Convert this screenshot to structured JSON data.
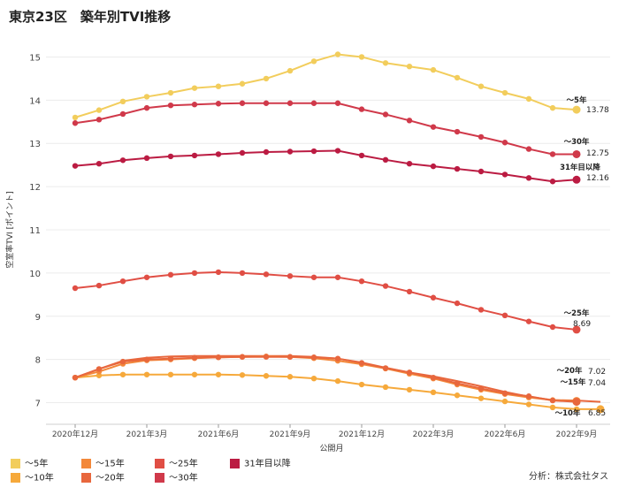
{
  "title": "東京23区　築年別TVI推移",
  "credit": "分析：株式会社タス",
  "chart_data": {
    "type": "line",
    "title": "東京23区　築年別TVI推移",
    "xlabel": "公開月",
    "ylabel": "空室率TVI [ポイント]",
    "ylim": [
      6.5,
      15.5
    ],
    "yticks": [
      7,
      8,
      9,
      10,
      11,
      12,
      13,
      14,
      15
    ],
    "grid": true,
    "x": [
      "2020-12",
      "2021-01",
      "2021-02",
      "2021-03",
      "2021-04",
      "2021-05",
      "2021-06",
      "2021-07",
      "2021-08",
      "2021-09",
      "2021-10",
      "2021-11",
      "2021-12",
      "2022-01",
      "2022-02",
      "2022-03",
      "2022-04",
      "2022-05",
      "2022-06",
      "2022-07",
      "2022-08",
      "2022-09",
      "2022-10"
    ],
    "xtick_labels": [
      {
        "index": 0,
        "label": "2020年12月"
      },
      {
        "index": 3,
        "label": "2021年3月"
      },
      {
        "index": 6,
        "label": "2021年6月"
      },
      {
        "index": 9,
        "label": "2021年9月"
      },
      {
        "index": 12,
        "label": "2021年12月"
      },
      {
        "index": 15,
        "label": "2022年3月"
      },
      {
        "index": 18,
        "label": "2022年6月"
      },
      {
        "index": 21,
        "label": "2022年9月"
      }
    ],
    "series": [
      {
        "name": "〜5年",
        "color": "#f2cd5c",
        "values": [
          13.6,
          13.77,
          13.97,
          14.08,
          14.17,
          14.28,
          14.32,
          14.38,
          14.5,
          14.68,
          14.9,
          15.06,
          15.0,
          14.86,
          14.78,
          14.7,
          14.52,
          14.32,
          14.17,
          14.03,
          13.82,
          13.78,
          null
        ],
        "label": "〜5年",
        "value_label": "13.78"
      },
      {
        "name": "〜10年",
        "color": "#f6a93b",
        "values": [
          7.58,
          7.63,
          7.65,
          7.65,
          7.65,
          7.65,
          7.65,
          7.64,
          7.62,
          7.6,
          7.56,
          7.5,
          7.42,
          7.36,
          7.3,
          7.24,
          7.17,
          7.1,
          7.03,
          6.96,
          6.89,
          6.85,
          6.85
        ],
        "label": "〜10年",
        "value_label": "6.85"
      },
      {
        "name": "〜15年",
        "color": "#f3883a",
        "values": [
          7.58,
          7.72,
          7.9,
          7.98,
          8.0,
          8.03,
          8.05,
          8.06,
          8.07,
          8.06,
          8.03,
          7.97,
          7.89,
          7.79,
          7.67,
          7.56,
          7.42,
          7.3,
          7.2,
          7.12,
          7.06,
          7.04,
          null
        ],
        "label": "〜15年",
        "value_label": "7.04"
      },
      {
        "name": "〜20年",
        "color": "#e8673d",
        "values": [
          7.58,
          7.78,
          7.95,
          8.0,
          8.02,
          8.04,
          8.05,
          8.06,
          8.06,
          8.06,
          8.05,
          8.02,
          7.92,
          7.8,
          7.7,
          7.58,
          7.45,
          7.33,
          7.22,
          7.15,
          7.05,
          7.02,
          null
        ],
        "label": "〜20年",
        "value_label": "7.02"
      },
      {
        "name": "〜25年",
        "color": "#e04e44",
        "values": [
          9.65,
          9.71,
          9.81,
          9.9,
          9.96,
          10.0,
          10.02,
          10.0,
          9.97,
          9.93,
          9.9,
          9.9,
          9.81,
          9.7,
          9.57,
          9.43,
          9.3,
          9.15,
          9.02,
          8.88,
          8.75,
          8.69,
          null
        ],
        "label": "〜25年",
        "value_label": "8.69"
      },
      {
        "name": "〜30年",
        "color": "#d0394a",
        "values": [
          13.47,
          13.55,
          13.68,
          13.82,
          13.88,
          13.9,
          13.92,
          13.93,
          13.93,
          13.93,
          13.93,
          13.93,
          13.79,
          13.67,
          13.53,
          13.38,
          13.27,
          13.15,
          13.02,
          12.87,
          12.75,
          12.75,
          null
        ],
        "label": "〜30年",
        "value_label": "12.75"
      },
      {
        "name": "31年目以降",
        "color": "#bb1b42",
        "values": [
          12.48,
          12.53,
          12.61,
          12.66,
          12.7,
          12.72,
          12.75,
          12.78,
          12.8,
          12.81,
          12.82,
          12.83,
          12.72,
          12.62,
          12.53,
          12.47,
          12.41,
          12.35,
          12.28,
          12.2,
          12.12,
          12.16,
          null
        ],
        "label": "31年目以降",
        "value_label": "12.16"
      }
    ],
    "extra_series": [
      {
        "name": "〜20年 extension",
        "color": "#e8673d",
        "values": [
          7.58,
          7.78,
          7.97,
          8.04,
          8.07,
          8.08,
          8.08,
          8.08,
          8.08,
          8.08,
          8.06,
          8.02,
          7.93,
          7.81,
          7.7,
          7.61,
          7.5,
          7.38,
          7.25,
          7.14,
          7.06,
          7.05,
          7.02
        ]
      }
    ],
    "legend": [
      {
        "label": "〜5年",
        "color": "#f2cd5c"
      },
      {
        "label": "〜10年",
        "color": "#f6a93b"
      },
      {
        "label": "〜15年",
        "color": "#f3883a"
      },
      {
        "label": "〜20年",
        "color": "#e8673d"
      },
      {
        "label": "〜25年",
        "color": "#e04e44"
      },
      {
        "label": "〜30年",
        "color": "#d0394a"
      },
      {
        "label": "31年目以降",
        "color": "#bb1b42"
      }
    ]
  }
}
